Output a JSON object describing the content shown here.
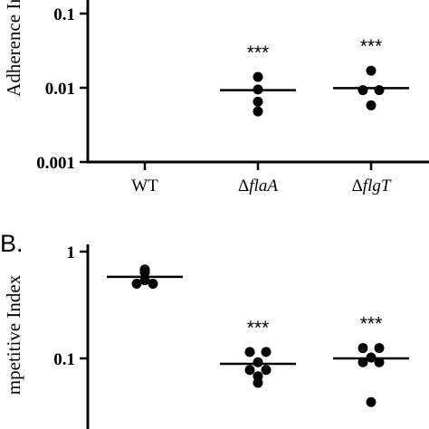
{
  "chart_data": [
    {
      "type": "scatter",
      "panel_label": "",
      "ylabel": "Adherence In",
      "yscale": "log",
      "ylim": [
        0.001,
        0.1
      ],
      "yticks": [
        {
          "value": 0.1,
          "label": "0.1"
        },
        {
          "value": 0.01,
          "label": "0.01"
        },
        {
          "value": 0.001,
          "label": "0.001"
        }
      ],
      "categories": [
        {
          "prefix": "",
          "italic": "",
          "plain": "WT"
        },
        {
          "prefix": "Δ",
          "italic": "flaA",
          "plain": ""
        },
        {
          "prefix": "Δ",
          "italic": "flgT",
          "plain": ""
        }
      ],
      "groups": [
        {
          "category_index": 1,
          "points": [
            0.014,
            0.0095,
            0.0065,
            0.0048
          ],
          "median": 0.0093,
          "significance": "***"
        },
        {
          "category_index": 2,
          "points": [
            0.017,
            0.0093,
            0.0093,
            0.0058
          ],
          "median": 0.0099,
          "significance": "***"
        }
      ]
    },
    {
      "type": "scatter",
      "panel_label": "B.",
      "ylabel": "mpetitive Index",
      "yscale": "log",
      "ylim": [
        0.033,
        1
      ],
      "yticks": [
        {
          "value": 1,
          "label": "1"
        },
        {
          "value": 0.1,
          "label": "0.1"
        }
      ],
      "categories": [],
      "groups": [
        {
          "category_index": 0,
          "points": [
            0.68,
            0.64,
            0.54,
            0.5,
            0.5
          ],
          "median": 0.58,
          "significance": ""
        },
        {
          "category_index": 1,
          "points": [
            0.115,
            0.115,
            0.092,
            0.078,
            0.078,
            0.068,
            0.059
          ],
          "median": 0.089,
          "significance": "***"
        },
        {
          "category_index": 2,
          "points": [
            0.125,
            0.125,
            0.102,
            0.092,
            0.092,
            0.039
          ],
          "median": 0.1,
          "significance": "***"
        }
      ]
    }
  ]
}
